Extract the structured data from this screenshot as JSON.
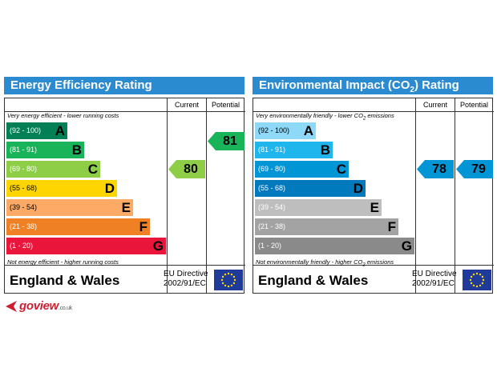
{
  "chart_data": [
    {
      "type": "bar",
      "title": "Energy Efficiency Rating",
      "columns": [
        "Current",
        "Potential"
      ],
      "top_caption": "Very energy efficient - lower running costs",
      "bottom_caption": "Not energy efficient - higher running costs",
      "bands": [
        {
          "range": "(92 - 100)",
          "letter": "A",
          "color": "#008054"
        },
        {
          "range": "(81 - 91)",
          "letter": "B",
          "color": "#19b459"
        },
        {
          "range": "(69 - 80)",
          "letter": "C",
          "color": "#8dce46"
        },
        {
          "range": "(55 - 68)",
          "letter": "D",
          "color": "#ffd500"
        },
        {
          "range": "(39 - 54)",
          "letter": "E",
          "color": "#fcaa65"
        },
        {
          "range": "(21 - 38)",
          "letter": "F",
          "color": "#ef8023"
        },
        {
          "range": "(1 - 20)",
          "letter": "G",
          "color": "#e9153b"
        }
      ],
      "current": {
        "value": "80",
        "band": "C",
        "color": "#8dce46"
      },
      "potential": {
        "value": "81",
        "band": "B",
        "color": "#19b459"
      },
      "footer_region": "England & Wales",
      "footer_directive_line1": "EU Directive",
      "footer_directive_line2": "2002/91/EC"
    },
    {
      "type": "bar",
      "title": "Environmental Impact (CO",
      "title_sub": "2",
      "title_end": ") Rating",
      "columns": [
        "Current",
        "Potential"
      ],
      "top_caption": "Very environmentally friendly - lower CO",
      "top_caption_sub": "2",
      "top_caption_end": " emissions",
      "bottom_caption": "Not environmentally friendly - higher CO",
      "bottom_caption_sub": "2",
      "bottom_caption_end": " emissions",
      "bands": [
        {
          "range": "(92 - 100)",
          "letter": "A",
          "color": "#8ed8f8"
        },
        {
          "range": "(81 - 91)",
          "letter": "B",
          "color": "#1fb5ed"
        },
        {
          "range": "(69 - 80)",
          "letter": "C",
          "color": "#0096d6"
        },
        {
          "range": "(55 - 68)",
          "letter": "D",
          "color": "#0079bd"
        },
        {
          "range": "(39 - 54)",
          "letter": "E",
          "color": "#bebebe"
        },
        {
          "range": "(21 - 38)",
          "letter": "F",
          "color": "#a3a3a3"
        },
        {
          "range": "(1 - 20)",
          "letter": "G",
          "color": "#8a8a8a"
        }
      ],
      "current": {
        "value": "78",
        "band": "C",
        "color": "#0096d6"
      },
      "potential": {
        "value": "79",
        "band": "C",
        "color": "#0096d6"
      },
      "footer_region": "England & Wales",
      "footer_directive_line1": "EU Directive",
      "footer_directive_line2": "2002/91/EC"
    }
  ],
  "logo": {
    "text": "goview",
    "suffix": ".co.uk",
    "color": "#cc2030"
  }
}
